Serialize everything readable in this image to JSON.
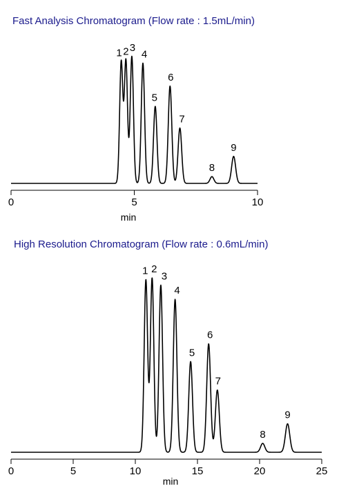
{
  "chart_data": [
    {
      "type": "line",
      "title": "Fast Analysis Chromatogram (Flow rate : 1.5mL/min)",
      "xlabel": "min",
      "ylabel": "",
      "xlim": [
        0,
        10
      ],
      "x_ticks": [
        0,
        5,
        10
      ],
      "tick_labels": [
        "0",
        "5",
        "10"
      ],
      "grid": false,
      "peaks": [
        {
          "label": "1",
          "rt": 4.47,
          "height": 0.9
        },
        {
          "label": "2",
          "rt": 4.66,
          "height": 0.91
        },
        {
          "label": "3",
          "rt": 4.9,
          "height": 0.94
        },
        {
          "label": "4",
          "rt": 5.35,
          "height": 0.89
        },
        {
          "label": "5",
          "rt": 5.85,
          "height": 0.57
        },
        {
          "label": "6",
          "rt": 6.45,
          "height": 0.72
        },
        {
          "label": "7",
          "rt": 6.85,
          "height": 0.41
        },
        {
          "label": "8",
          "rt": 8.15,
          "height": 0.05
        },
        {
          "label": "9",
          "rt": 9.03,
          "height": 0.2
        }
      ]
    },
    {
      "type": "line",
      "title": "High Resolution Chromatogram (Flow rate : 0.6mL/min)",
      "xlabel": "min",
      "ylabel": "",
      "xlim": [
        0,
        25
      ],
      "x_ticks": [
        0,
        5,
        10,
        15,
        20,
        25
      ],
      "tick_labels": [
        "0",
        "5",
        "10",
        "15",
        "20",
        "25"
      ],
      "grid": false,
      "peaks": [
        {
          "label": "1",
          "rt": 10.85,
          "height": 0.97
        },
        {
          "label": "2",
          "rt": 11.35,
          "height": 0.98
        },
        {
          "label": "3",
          "rt": 12.05,
          "height": 0.94
        },
        {
          "label": "4",
          "rt": 13.2,
          "height": 0.86
        },
        {
          "label": "5",
          "rt": 14.45,
          "height": 0.51
        },
        {
          "label": "6",
          "rt": 15.9,
          "height": 0.61
        },
        {
          "label": "7",
          "rt": 16.6,
          "height": 0.35
        },
        {
          "label": "8",
          "rt": 20.25,
          "height": 0.05
        },
        {
          "label": "9",
          "rt": 22.25,
          "height": 0.16
        }
      ]
    }
  ]
}
